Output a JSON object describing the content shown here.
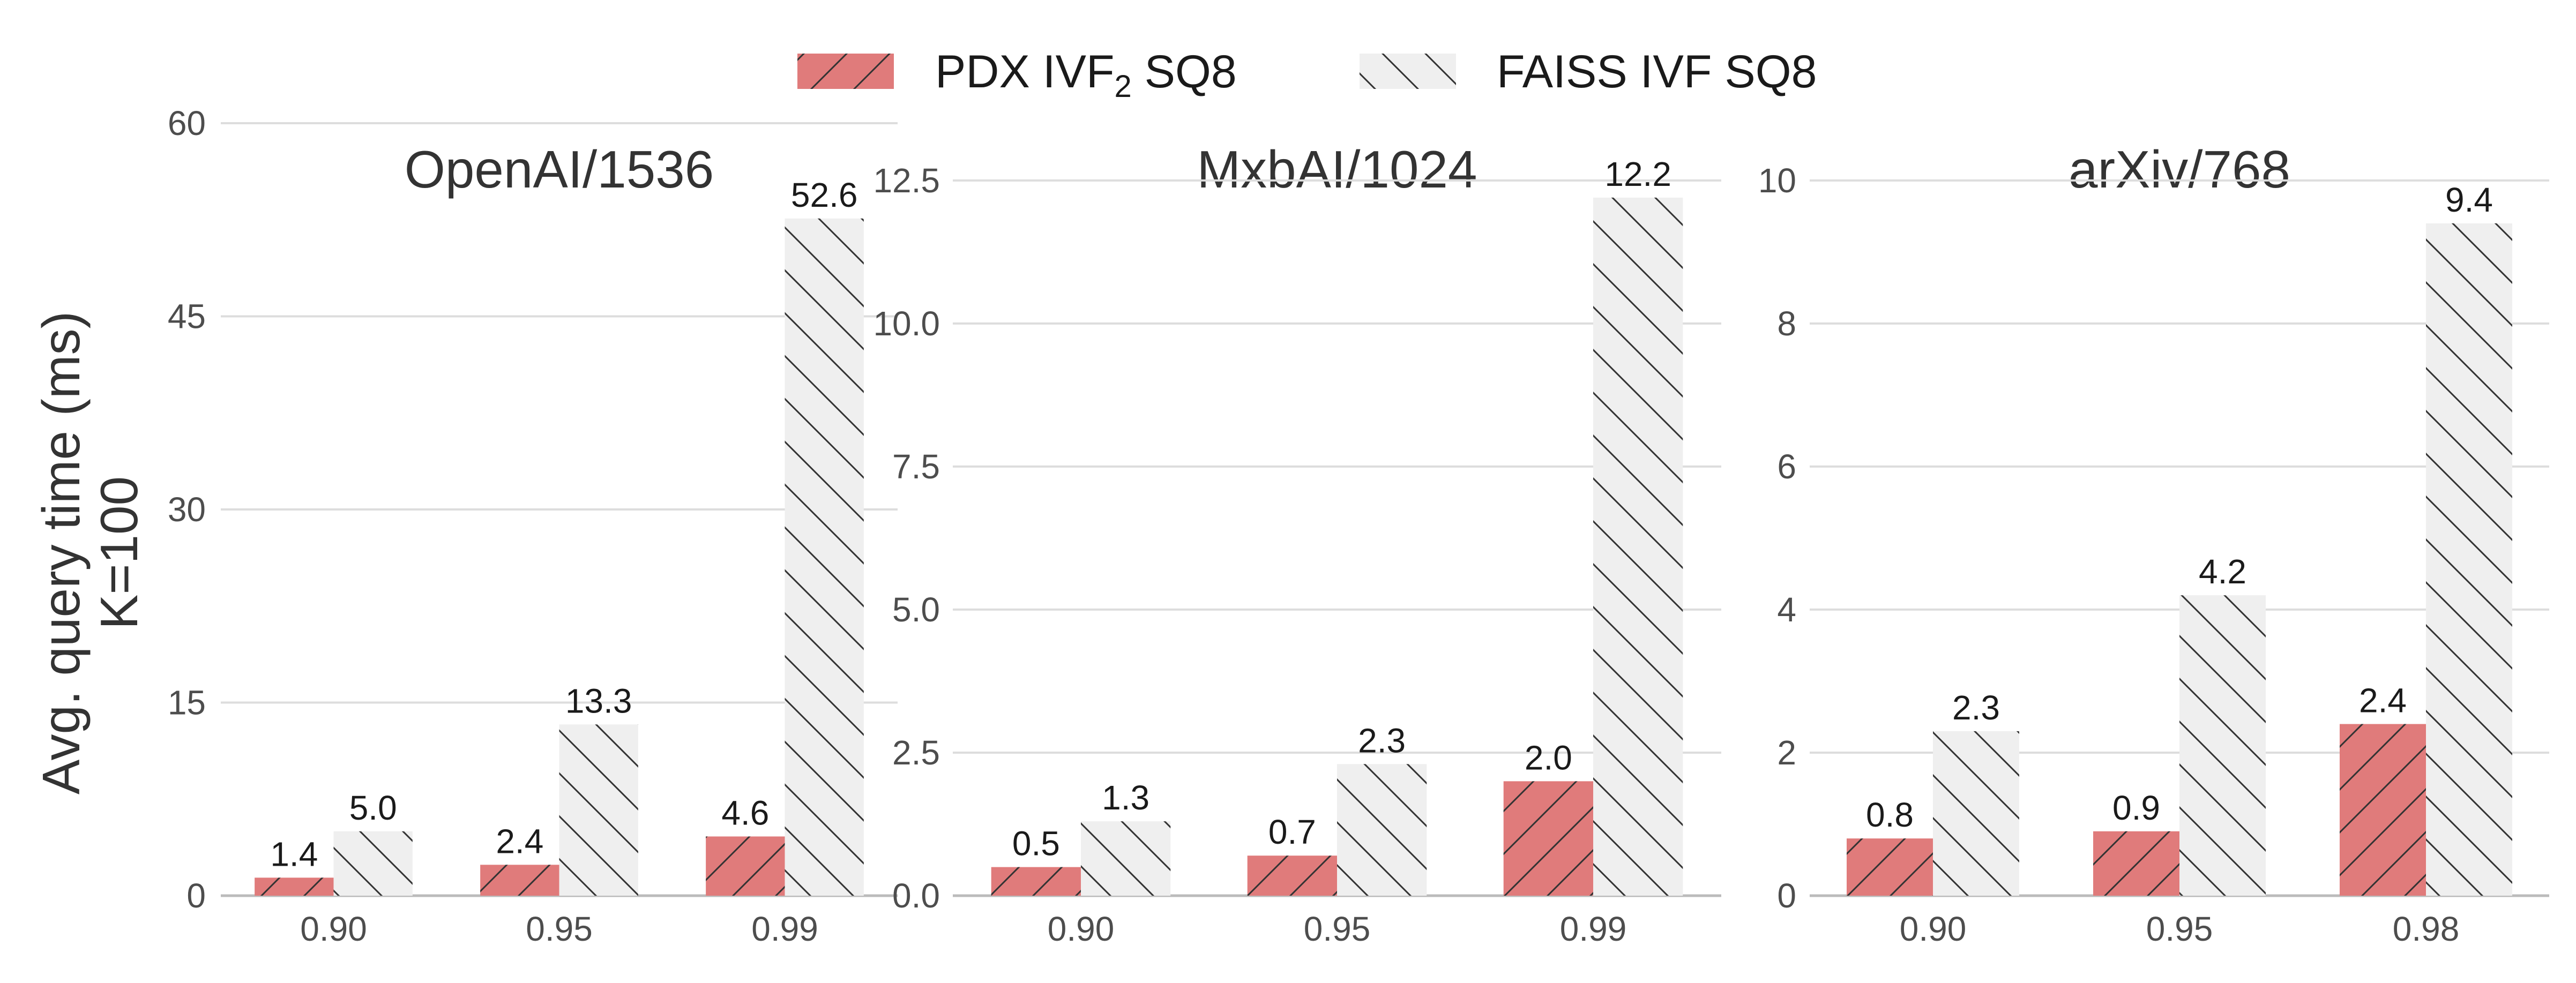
{
  "colors": {
    "pdx": "#e07b7b",
    "faiss": "#efefef",
    "hatch": "#333333"
  },
  "legend": {
    "placement": "top-center",
    "items": [
      {
        "key": "pdx",
        "label_main": "PDX IVF",
        "label_sub": "2",
        "label_tail": " SQ8"
      },
      {
        "key": "faiss",
        "label_main": "FAISS IVF SQ8",
        "label_sub": "",
        "label_tail": ""
      }
    ]
  },
  "ylabel_lines": [
    "Avg. query time (ms)",
    "K=100"
  ],
  "chart_data": [
    {
      "type": "bar",
      "title": "OpenAI/1536",
      "categories": [
        "0.90",
        "0.95",
        "0.99"
      ],
      "series": [
        {
          "name": "PDX IVF₂ SQ8",
          "values": [
            1.4,
            2.4,
            4.6
          ]
        },
        {
          "name": "FAISS IVF SQ8",
          "values": [
            5.0,
            13.3,
            52.6
          ]
        }
      ],
      "ylim": [
        0,
        60
      ],
      "yticks": [
        0,
        15,
        30,
        45,
        60
      ],
      "ytick_labels": [
        "0",
        "15",
        "30",
        "45",
        "60"
      ],
      "grid": true
    },
    {
      "type": "bar",
      "title": "MxbAI/1024",
      "categories": [
        "0.90",
        "0.95",
        "0.99"
      ],
      "series": [
        {
          "name": "PDX IVF₂ SQ8",
          "values": [
            0.5,
            0.7,
            2.0
          ]
        },
        {
          "name": "FAISS IVF SQ8",
          "values": [
            1.3,
            2.3,
            12.2
          ]
        }
      ],
      "ylim": [
        0,
        13.5
      ],
      "yticks": [
        0,
        2.5,
        5,
        7.5,
        10,
        12.5
      ],
      "ytick_labels": [
        "0.0",
        "2.5",
        "5.0",
        "7.5",
        "10.0",
        "12.5"
      ],
      "grid": true
    },
    {
      "type": "bar",
      "title": "arXiv/768",
      "categories": [
        "0.90",
        "0.95",
        "0.98"
      ],
      "series": [
        {
          "name": "PDX IVF₂ SQ8",
          "values": [
            0.8,
            0.9,
            2.4
          ]
        },
        {
          "name": "FAISS IVF SQ8",
          "values": [
            2.3,
            4.2,
            9.4
          ]
        }
      ],
      "ylim": [
        0,
        10.8
      ],
      "yticks": [
        0,
        2,
        4,
        6,
        8,
        10
      ],
      "ytick_labels": [
        "0",
        "2",
        "4",
        "6",
        "8",
        "10"
      ],
      "grid": true
    }
  ]
}
